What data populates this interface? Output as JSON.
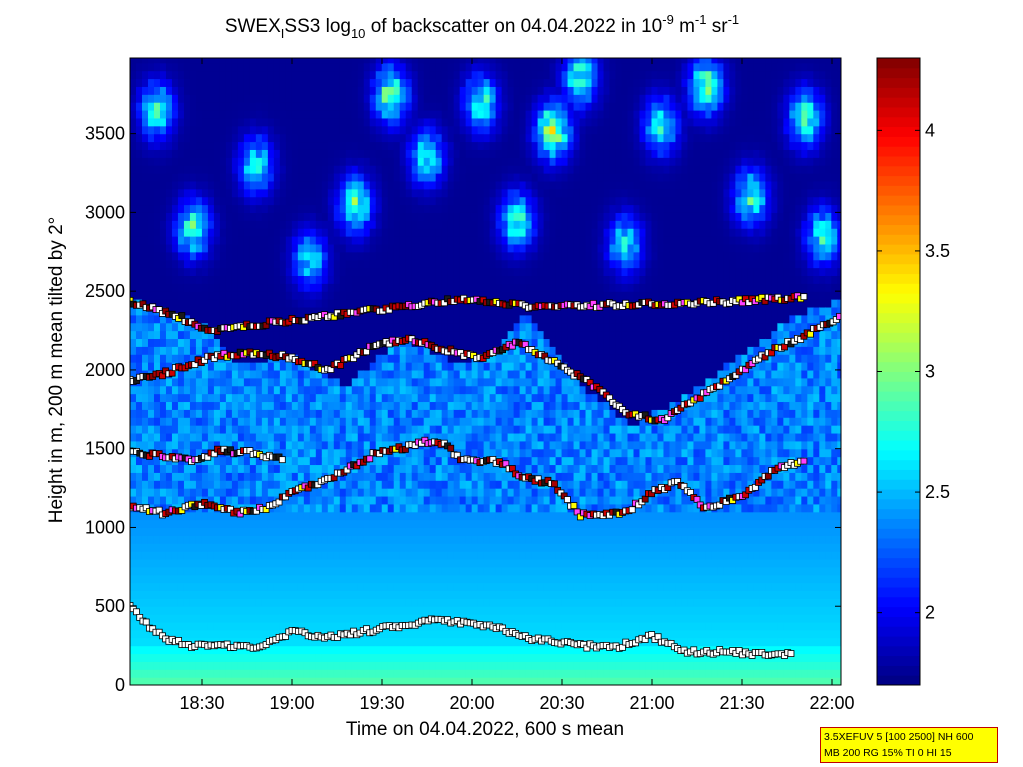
{
  "chart_data": {
    "type": "heatmap",
    "title": {
      "prefix": "SWEX",
      "sub_i": "I",
      "middle": "SS3 log",
      "sub_10": "10",
      "rest": " of backscatter on 04.04.2022 in 10",
      "sup_exp": "-9",
      "unit_m": " m",
      "sup_m": "-1",
      "unit_sr": " sr",
      "sup_sr": "-1"
    },
    "xlabel": "Time on 04.04.2022, 600 s mean",
    "ylabel": "Height in m, 200 m mean tilted by 2°",
    "x_range_hours": [
      18.1,
      22.05
    ],
    "x_ticks": [
      {
        "value": 18.5,
        "label": "18:30"
      },
      {
        "value": 19.0,
        "label": "19:00"
      },
      {
        "value": 19.5,
        "label": "19:30"
      },
      {
        "value": 20.0,
        "label": "20:00"
      },
      {
        "value": 20.5,
        "label": "20:30"
      },
      {
        "value": 21.0,
        "label": "21:00"
      },
      {
        "value": 21.5,
        "label": "21:30"
      },
      {
        "value": 22.0,
        "label": "22:00"
      }
    ],
    "y_range": [
      0,
      3980
    ],
    "y_ticks": [
      {
        "value": 0,
        "label": "0"
      },
      {
        "value": 500,
        "label": "500"
      },
      {
        "value": 1000,
        "label": "1000"
      },
      {
        "value": 1500,
        "label": "1500"
      },
      {
        "value": 2000,
        "label": "2000"
      },
      {
        "value": 2500,
        "label": "2500"
      },
      {
        "value": 3000,
        "label": "3000"
      },
      {
        "value": 3500,
        "label": "3500"
      }
    ],
    "colorbar": {
      "range": [
        1.7,
        4.3
      ],
      "ticks": [
        {
          "value": 2,
          "label": "2"
        },
        {
          "value": 2.5,
          "label": "2.5"
        },
        {
          "value": 3,
          "label": "3"
        },
        {
          "value": 3.5,
          "label": "3.5"
        },
        {
          "value": 4,
          "label": "4"
        }
      ],
      "colormap": "jet"
    },
    "field": {
      "time_step_hours": 0.0333,
      "height_step_m": 50,
      "surface_value": 2.9,
      "low_layer_value": 2.6,
      "mid_layer_value": 2.35,
      "upper_background_value": 1.75,
      "boundary_layer_top_m": [
        {
          "t": 18.1,
          "h": 2450
        },
        {
          "t": 18.5,
          "h": 2300
        },
        {
          "t": 18.7,
          "h": 2050
        },
        {
          "t": 19.0,
          "h": 2100
        },
        {
          "t": 19.3,
          "h": 1900
        },
        {
          "t": 19.6,
          "h": 2200
        },
        {
          "t": 19.9,
          "h": 2050
        },
        {
          "t": 20.1,
          "h": 2100
        },
        {
          "t": 20.3,
          "h": 2350
        },
        {
          "t": 20.6,
          "h": 1900
        },
        {
          "t": 20.9,
          "h": 1650
        },
        {
          "t": 21.2,
          "h": 1850
        },
        {
          "t": 21.5,
          "h": 2100
        },
        {
          "t": 21.8,
          "h": 2350
        },
        {
          "t": 22.05,
          "h": 2450
        }
      ],
      "cloud_patches": [
        {
          "t": 18.25,
          "h": 3650,
          "value": 2.75
        },
        {
          "t": 18.45,
          "h": 2900,
          "value": 2.8
        },
        {
          "t": 18.8,
          "h": 3300,
          "value": 2.7
        },
        {
          "t": 19.1,
          "h": 2700,
          "value": 2.6
        },
        {
          "t": 19.35,
          "h": 3050,
          "value": 2.85
        },
        {
          "t": 19.55,
          "h": 3750,
          "value": 2.9
        },
        {
          "t": 19.75,
          "h": 3350,
          "value": 2.7
        },
        {
          "t": 20.05,
          "h": 3700,
          "value": 2.75
        },
        {
          "t": 20.25,
          "h": 2950,
          "value": 2.8
        },
        {
          "t": 20.45,
          "h": 3520,
          "value": 3.1
        },
        {
          "t": 20.6,
          "h": 3850,
          "value": 2.8
        },
        {
          "t": 20.85,
          "h": 2800,
          "value": 2.65
        },
        {
          "t": 21.05,
          "h": 3550,
          "value": 2.7
        },
        {
          "t": 21.3,
          "h": 3800,
          "value": 2.9
        },
        {
          "t": 21.55,
          "h": 3100,
          "value": 2.75
        },
        {
          "t": 21.85,
          "h": 3600,
          "value": 2.8
        },
        {
          "t": 21.95,
          "h": 2850,
          "value": 2.7
        }
      ]
    },
    "marker_layers": [
      {
        "name": "layer1",
        "points": [
          {
            "t": 18.1,
            "h": 500
          },
          {
            "t": 18.2,
            "h": 380
          },
          {
            "t": 18.3,
            "h": 290
          },
          {
            "t": 18.45,
            "h": 245
          },
          {
            "t": 18.6,
            "h": 260
          },
          {
            "t": 18.8,
            "h": 230
          },
          {
            "t": 19.0,
            "h": 340
          },
          {
            "t": 19.2,
            "h": 300
          },
          {
            "t": 19.5,
            "h": 360
          },
          {
            "t": 19.8,
            "h": 410
          },
          {
            "t": 20.1,
            "h": 380
          },
          {
            "t": 20.35,
            "h": 290
          },
          {
            "t": 20.6,
            "h": 250
          },
          {
            "t": 20.8,
            "h": 240
          },
          {
            "t": 21.0,
            "h": 310
          },
          {
            "t": 21.2,
            "h": 210
          },
          {
            "t": 21.4,
            "h": 210
          },
          {
            "t": 21.6,
            "h": 200
          },
          {
            "t": 21.78,
            "h": 200
          }
        ]
      },
      {
        "name": "layer2",
        "points": [
          {
            "t": 18.1,
            "h": 1130
          },
          {
            "t": 18.3,
            "h": 1090
          },
          {
            "t": 18.5,
            "h": 1150
          },
          {
            "t": 18.7,
            "h": 1090
          },
          {
            "t": 18.9,
            "h": 1130
          },
          {
            "t": 19.0,
            "h": 1240
          },
          {
            "t": 19.15,
            "h": 1280
          },
          {
            "t": 19.3,
            "h": 1360
          },
          {
            "t": 19.45,
            "h": 1460
          },
          {
            "t": 19.6,
            "h": 1500
          },
          {
            "t": 19.8,
            "h": 1560
          },
          {
            "t": 19.95,
            "h": 1430
          },
          {
            "t": 20.15,
            "h": 1420
          },
          {
            "t": 20.3,
            "h": 1310
          },
          {
            "t": 20.45,
            "h": 1280
          },
          {
            "t": 20.6,
            "h": 1080
          },
          {
            "t": 20.85,
            "h": 1090
          },
          {
            "t": 21.0,
            "h": 1220
          },
          {
            "t": 21.15,
            "h": 1290
          },
          {
            "t": 21.3,
            "h": 1120
          },
          {
            "t": 21.5,
            "h": 1200
          },
          {
            "t": 21.7,
            "h": 1380
          },
          {
            "t": 21.85,
            "h": 1420
          }
        ]
      },
      {
        "name": "layer3",
        "points": [
          {
            "t": 18.1,
            "h": 1480
          },
          {
            "t": 18.25,
            "h": 1460
          },
          {
            "t": 18.45,
            "h": 1420
          },
          {
            "t": 18.6,
            "h": 1490
          },
          {
            "t": 18.8,
            "h": 1470
          },
          {
            "t": 18.95,
            "h": 1430
          }
        ]
      },
      {
        "name": "layer4",
        "points": [
          {
            "t": 18.1,
            "h": 1930
          },
          {
            "t": 18.3,
            "h": 1980
          },
          {
            "t": 18.55,
            "h": 2080
          },
          {
            "t": 18.75,
            "h": 2110
          },
          {
            "t": 19.0,
            "h": 2080
          },
          {
            "t": 19.2,
            "h": 2000
          },
          {
            "t": 19.45,
            "h": 2150
          },
          {
            "t": 19.65,
            "h": 2200
          },
          {
            "t": 19.85,
            "h": 2130
          },
          {
            "t": 20.05,
            "h": 2070
          },
          {
            "t": 20.25,
            "h": 2180
          },
          {
            "t": 20.45,
            "h": 2050
          },
          {
            "t": 20.65,
            "h": 1920
          },
          {
            "t": 20.85,
            "h": 1730
          },
          {
            "t": 21.05,
            "h": 1680
          },
          {
            "t": 21.25,
            "h": 1820
          },
          {
            "t": 21.45,
            "h": 1960
          },
          {
            "t": 21.65,
            "h": 2110
          },
          {
            "t": 21.85,
            "h": 2220
          },
          {
            "t": 22.05,
            "h": 2340
          }
        ]
      },
      {
        "name": "layer5",
        "points": [
          {
            "t": 18.1,
            "h": 2430
          },
          {
            "t": 18.35,
            "h": 2350
          },
          {
            "t": 18.55,
            "h": 2250
          },
          {
            "t": 19.95,
            "h": 2450
          },
          {
            "t": 20.35,
            "h": 2400
          },
          {
            "t": 21.35,
            "h": 2430
          },
          {
            "t": 21.85,
            "h": 2460
          }
        ]
      }
    ],
    "marker_colors": [
      "#ffffff",
      "#ffffff",
      "#ffffff",
      "#8b0000",
      "#d00000",
      "#ffff00",
      "#ff40ff",
      "#1a1a1a",
      "#ffffff",
      "#aa0000"
    ]
  },
  "info_box": {
    "line1": "3.5XEFUV 5 [100 2500] NH 600",
    "line2": "MB 200 RG 15% TI 0 HI 15"
  }
}
